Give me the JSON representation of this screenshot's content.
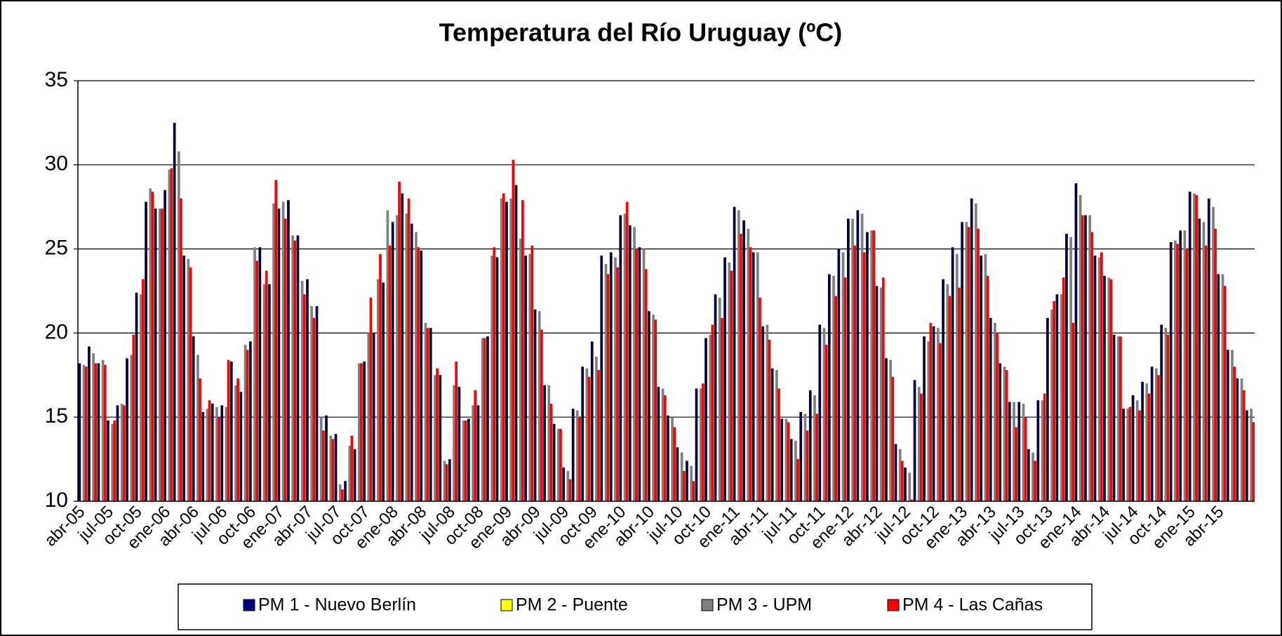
{
  "chart_data": {
    "type": "bar",
    "title": "Temperatura del Río Uruguay (ºC)",
    "categories": [
      "abr-05",
      null,
      null,
      "jul-05",
      null,
      null,
      "oct-05",
      null,
      null,
      "ene-06",
      null,
      null,
      "abr-06",
      null,
      null,
      "jul-06",
      null,
      null,
      "oct-06",
      null,
      null,
      "ene-07",
      null,
      null,
      "abr-07",
      null,
      null,
      "jul-07",
      null,
      null,
      "oct-07",
      null,
      null,
      "ene-08",
      null,
      null,
      "abr-08",
      null,
      null,
      "jul-08",
      null,
      null,
      "oct-08",
      null,
      null,
      "ene-09",
      null,
      null,
      "abr-09",
      null,
      null,
      "jul-09",
      null,
      null,
      "oct-09",
      null,
      null,
      "ene-10",
      null,
      null,
      "abr-10",
      null,
      null,
      "jul-10",
      null,
      null,
      "oct-10",
      null,
      null,
      "ene-11",
      null,
      null,
      "abr-11",
      null,
      null,
      "jul-11",
      null,
      null,
      "oct-11",
      null,
      null,
      "ene-12",
      null,
      null,
      "abr-12",
      null,
      null,
      "jul-12",
      null,
      null,
      "oct-12",
      null,
      null,
      "ene-13",
      null,
      null,
      "abr-13",
      null,
      null,
      "jul-13",
      null,
      null,
      "oct-13",
      null,
      null,
      "ene-14",
      null,
      null,
      "abr-14",
      null,
      null,
      "jul-14",
      null,
      null,
      "oct-14",
      null,
      null,
      "ene-15",
      null,
      null,
      "abr-15",
      null,
      null,
      null
    ],
    "series": [
      {
        "name": "PM 1 - Nuevo Berlín",
        "color": "#000040",
        "legend_color": "#000080",
        "values": [
          18.2,
          19.2,
          18.2,
          14.8,
          15.7,
          18.5,
          22.4,
          27.8,
          27.4,
          28.5,
          32.5,
          24.6,
          19.8,
          15.3,
          15.8,
          15.7,
          18.3,
          16.5,
          19.5,
          25.1,
          22.9,
          27.4,
          27.9,
          25.8,
          23.2,
          21.6,
          15.1,
          14.0,
          11.2,
          13.1,
          18.3,
          20.0,
          23.0,
          26.6,
          28.3,
          26.5,
          24.9,
          20.3,
          17.5,
          12.5,
          16.8,
          14.9,
          15.7,
          19.8,
          24.5,
          27.8,
          28.8,
          24.6,
          21.4,
          16.9,
          14.6,
          12.0,
          15.5,
          18.0,
          19.5,
          24.6,
          24.8,
          27.0,
          26.4,
          25.1,
          21.3,
          16.8,
          15.1,
          13.2,
          12.4,
          16.7,
          19.7,
          22.3,
          24.5,
          27.5,
          26.7,
          24.8,
          20.4,
          17.9,
          14.9,
          13.7,
          15.3,
          16.6,
          20.5,
          23.5,
          25.0,
          26.8,
          27.3,
          26.0,
          22.8,
          18.5,
          13.4,
          12.0,
          17.2,
          19.8,
          20.4,
          23.2,
          25.1,
          26.6,
          28.0,
          24.6,
          20.9,
          18.2,
          15.9,
          15.9,
          13.1,
          16.0,
          20.9,
          22.3,
          25.9,
          28.9,
          27.0,
          24.6,
          23.4,
          19.9,
          15.5,
          16.3,
          17.1,
          18.0,
          20.5,
          25.4,
          26.1,
          28.4,
          26.8,
          28.0,
          23.5,
          19.0,
          17.3,
          15.4
        ]
      },
      {
        "name": "PM 2 - Puente",
        "color": "#ffff00",
        "values": [
          null,
          null,
          null,
          null,
          null,
          null,
          null,
          null,
          null,
          null,
          null,
          null,
          null,
          null,
          null,
          null,
          null,
          null,
          null,
          null,
          null,
          null,
          null,
          null,
          null,
          null,
          null,
          null,
          null,
          null,
          null,
          null,
          null,
          null,
          null,
          null,
          null,
          null,
          null,
          null,
          null,
          null,
          null,
          null,
          null,
          null,
          null,
          null,
          null,
          null,
          null,
          null,
          null,
          null,
          null,
          null,
          null,
          null,
          null,
          null,
          null,
          null,
          null,
          null,
          null,
          null,
          null,
          null,
          null,
          null,
          null,
          null,
          null,
          null,
          null,
          null,
          null,
          null,
          null,
          null,
          null,
          null,
          null,
          null,
          null,
          null,
          null,
          null,
          null,
          null,
          null,
          null,
          null,
          null,
          null,
          null,
          null,
          null,
          null,
          null,
          null,
          null,
          null,
          null,
          null,
          null,
          null,
          null,
          null,
          null,
          null,
          null,
          null,
          null,
          null,
          null,
          null,
          null,
          null,
          null,
          null,
          null,
          null,
          null
        ]
      },
      {
        "name": "PM 3 - UPM",
        "color": "#808080",
        "values": [
          18.1,
          18.8,
          18.4,
          14.6,
          15.8,
          18.7,
          22.3,
          28.6,
          27.4,
          29.7,
          30.8,
          24.4,
          18.7,
          15.5,
          15.6,
          15.6,
          16.9,
          19.3,
          25.1,
          22.9,
          27.7,
          27.8,
          25.8,
          23.1,
          21.6,
          15.0,
          13.9,
          11.0,
          13.3,
          18.2,
          20.0,
          23.2,
          27.3,
          27.0,
          27.1,
          26.0,
          20.6,
          17.5,
          12.4,
          16.9,
          14.8,
          15.7,
          19.7,
          24.6,
          28.0,
          28.0,
          25.6,
          24.7,
          21.3,
          16.9,
          14.3,
          11.8,
          15.4,
          17.9,
          18.6,
          24.1,
          24.5,
          27.1,
          26.3,
          25.0,
          21.1,
          16.7,
          15.0,
          12.9,
          12.1,
          16.7,
          19.9,
          22.1,
          24.2,
          27.3,
          26.2,
          24.8,
          20.5,
          17.8,
          14.9,
          13.6,
          15.2,
          16.3,
          20.3,
          23.4,
          24.8,
          26.8,
          27.1,
          26.1,
          22.7,
          18.4,
          13.1,
          11.7,
          16.8,
          19.5,
          20.3,
          22.9,
          24.7,
          26.6,
          27.7,
          24.7,
          20.6,
          18.0,
          15.9,
          15.8,
          12.9,
          16.0,
          21.4,
          22.3,
          25.7,
          28.2,
          27.0,
          24.5,
          23.3,
          19.8,
          15.5,
          16.0,
          17.0,
          17.9,
          20.3,
          25.5,
          26.1,
          28.3,
          26.6,
          27.5,
          23.5,
          19.0,
          17.3,
          15.5
        ]
      },
      {
        "name": "PM 4 - Las Cañas",
        "color": "#ff0000",
        "values": [
          18.0,
          18.2,
          18.1,
          14.8,
          15.7,
          19.9,
          23.2,
          28.4,
          27.4,
          29.8,
          28.0,
          23.9,
          17.3,
          16.0,
          15.0,
          18.4,
          17.3,
          19.0,
          24.3,
          23.7,
          29.1,
          26.8,
          25.5,
          22.3,
          20.9,
          14.2,
          13.7,
          10.7,
          13.9,
          18.2,
          22.1,
          24.7,
          25.2,
          29.0,
          28.0,
          25.1,
          20.3,
          17.9,
          12.2,
          18.3,
          14.8,
          16.6,
          19.7,
          25.1,
          28.3,
          30.3,
          27.9,
          25.2,
          20.2,
          15.8,
          14.3,
          11.3,
          15.0,
          17.4,
          17.8,
          23.5,
          23.9,
          27.8,
          25.0,
          23.8,
          20.8,
          16.3,
          14.4,
          11.8,
          11.2,
          17.0,
          20.5,
          20.9,
          23.7,
          25.9,
          25.1,
          22.1,
          19.6,
          16.7,
          14.7,
          12.5,
          14.2,
          15.2,
          19.3,
          22.2,
          23.3,
          25.2,
          24.8,
          26.1,
          23.3,
          17.4,
          12.4,
          10.1,
          16.4,
          20.6,
          19.4,
          22.2,
          22.7,
          26.3,
          26.2,
          23.4,
          20.0,
          17.8,
          14.4,
          15.0,
          12.4,
          16.4,
          21.9,
          23.3,
          20.6,
          27.0,
          26.0,
          24.8,
          23.2,
          19.8,
          15.6,
          15.4,
          16.4,
          17.5,
          19.9,
          25.3,
          25.0,
          28.2,
          25.2,
          26.2,
          22.8,
          18.0,
          16.6,
          14.7
        ]
      }
    ],
    "ylim": [
      10,
      35
    ],
    "yticks": [
      10,
      15,
      20,
      25,
      30,
      35
    ],
    "grid": true,
    "legend": "bottom"
  }
}
